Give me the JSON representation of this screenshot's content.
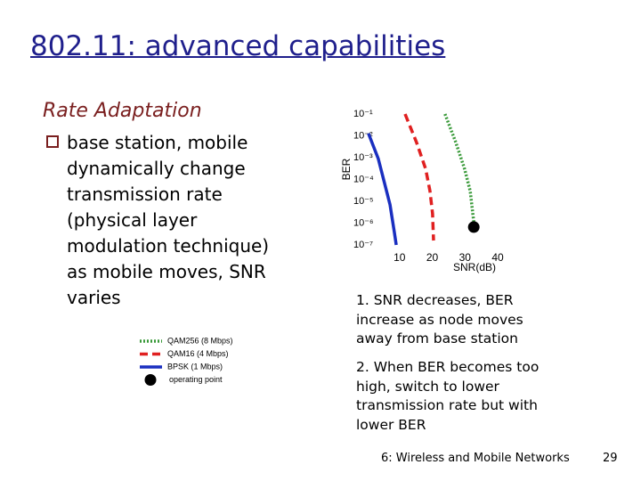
{
  "title": "802.11: advanced capabilities",
  "subtitle": "Rate Adaptation",
  "bullet": {
    "lines": [
      "base station, mobile",
      "dynamically change",
      "transmission rate",
      "(physical layer",
      "modulation technique)",
      "as mobile moves, SNR",
      "varies"
    ]
  },
  "notes": [
    {
      "lines": [
        "1. SNR decreases, BER",
        "increase as node moves",
        "away from base station"
      ]
    },
    {
      "lines": [
        "2. When BER becomes too",
        "high, switch to lower",
        "transmission rate but with",
        "lower BER"
      ]
    }
  ],
  "footer": {
    "text": "6: Wireless and Mobile Networks",
    "page": "29"
  },
  "chart_data": {
    "type": "line",
    "x_label": "SNR(dB)",
    "y_label": "BER",
    "y_log": true,
    "xlim": [
      0,
      40
    ],
    "ylim": [
      1e-07,
      0.1
    ],
    "xticks": [
      10,
      20,
      30,
      40
    ],
    "yticks": [
      {
        "value": 0.1,
        "label": "10⁻¹"
      },
      {
        "value": 0.01,
        "label": "10⁻²"
      },
      {
        "value": 0.001,
        "label": "10⁻³"
      },
      {
        "value": 0.0001,
        "label": "10⁻⁴"
      },
      {
        "value": 1e-05,
        "label": "10⁻⁵"
      },
      {
        "value": 1e-06,
        "label": "10⁻⁶"
      },
      {
        "value": 1e-07,
        "label": "10⁻⁷"
      }
    ],
    "series": [
      {
        "name": "QAM256 (8 Mbps)",
        "color": "#3a9a3a",
        "style": "dotted",
        "x": [
          23.9,
          27.2,
          29.9,
          31.6,
          32.4,
          32.9
        ],
        "values": [
          0.1,
          0.005,
          0.0003,
          3e-05,
          2.7e-06,
          6.6e-07
        ]
      },
      {
        "name": "QAM16 (4 Mbps)",
        "color": "#e02020",
        "style": "dashed",
        "x": [
          11.7,
          15.2,
          18.0,
          19.3,
          20.1,
          20.4
        ],
        "values": [
          0.1,
          0.005,
          0.0003,
          3e-05,
          2.7e-06,
          1.6e-07
        ]
      },
      {
        "name": "BPSK (1 Mbps)",
        "color": "#1a2fc0",
        "style": "solid",
        "x": [
          0.5,
          3.5,
          5.4,
          7.1,
          8.4,
          9.0
        ],
        "values": [
          0.013,
          0.0009,
          7e-05,
          7e-06,
          4e-07,
          1e-07
        ]
      }
    ],
    "points": [
      {
        "name": "operating point",
        "color": "#000000",
        "x": 32.7,
        "y": 6.6e-07
      }
    ]
  }
}
